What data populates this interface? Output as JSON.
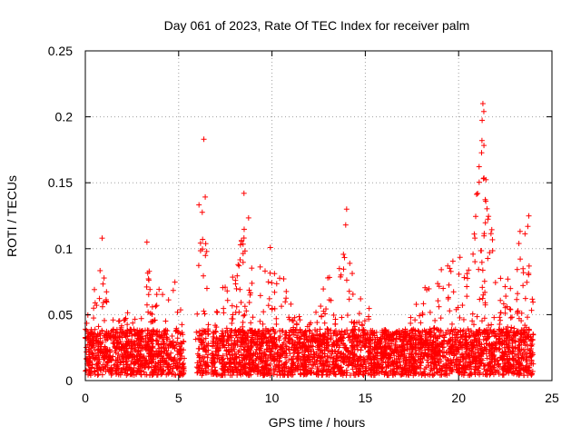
{
  "chart_data": {
    "type": "scatter",
    "title": "Day 061 of 2023, Rate Of TEC Index for receiver palm",
    "xlabel": "GPS time / hours",
    "ylabel": "ROTI / TECUs",
    "xlim": [
      0,
      25
    ],
    "ylim": [
      0,
      0.25
    ],
    "xticks": [
      0,
      5,
      10,
      15,
      20,
      25
    ],
    "yticks": [
      0,
      0.05,
      0.1,
      0.15,
      0.2,
      0.25
    ],
    "x_tick_labels": [
      "0",
      "5",
      "10",
      "15",
      "20",
      "25"
    ],
    "y_tick_labels": [
      "0",
      "0.05",
      "0.1",
      "0.15",
      "0.2",
      "0.25"
    ],
    "grid": true,
    "marker": "+",
    "marker_color": "#ff0000",
    "data_gaps_hours": [
      [
        5.3,
        5.9
      ],
      [
        6.6,
        6.75
      ]
    ],
    "envelope": {
      "hours": [
        0,
        0.5,
        0.8,
        1.0,
        1.5,
        2.0,
        2.5,
        3.0,
        3.3,
        3.6,
        4.0,
        4.4,
        4.8,
        5.2,
        5.3,
        5.9,
        6.1,
        6.4,
        6.6,
        6.75,
        7.0,
        7.5,
        8.0,
        8.5,
        9.0,
        9.5,
        10.0,
        10.5,
        11.0,
        11.5,
        12.0,
        12.5,
        13.0,
        13.5,
        14.0,
        14.5,
        15.0,
        15.5,
        16.0,
        16.5,
        17.0,
        17.5,
        18.0,
        18.5,
        19.0,
        19.5,
        20.0,
        20.5,
        20.8,
        21.0,
        21.3,
        21.6,
        22.0,
        22.5,
        23.0,
        23.4,
        23.8,
        24.0
      ],
      "roti_max": [
        0.045,
        0.07,
        0.1,
        0.08,
        0.055,
        0.05,
        0.055,
        0.06,
        0.1,
        0.06,
        0.075,
        0.09,
        0.08,
        0.05,
        0.02,
        0.12,
        0.165,
        0.18,
        0.04,
        0.06,
        0.07,
        0.075,
        0.09,
        0.14,
        0.115,
        0.095,
        0.105,
        0.08,
        0.075,
        0.05,
        0.045,
        0.06,
        0.085,
        0.075,
        0.125,
        0.06,
        0.065,
        0.04,
        0.045,
        0.035,
        0.04,
        0.05,
        0.07,
        0.08,
        0.085,
        0.095,
        0.105,
        0.08,
        0.16,
        0.175,
        0.205,
        0.16,
        0.09,
        0.08,
        0.09,
        0.125,
        0.13,
        0.105
      ],
      "roti_floor": 0.004
    },
    "notable_points": [
      {
        "x": 6.35,
        "y": 0.183
      },
      {
        "x": 21.3,
        "y": 0.21
      },
      {
        "x": 21.35,
        "y": 0.204
      },
      {
        "x": 21.25,
        "y": 0.182
      },
      {
        "x": 14.0,
        "y": 0.13
      },
      {
        "x": 8.5,
        "y": 0.142
      },
      {
        "x": 13.95,
        "y": 0.118
      },
      {
        "x": 0.9,
        "y": 0.108
      },
      {
        "x": 3.3,
        "y": 0.105
      }
    ]
  }
}
